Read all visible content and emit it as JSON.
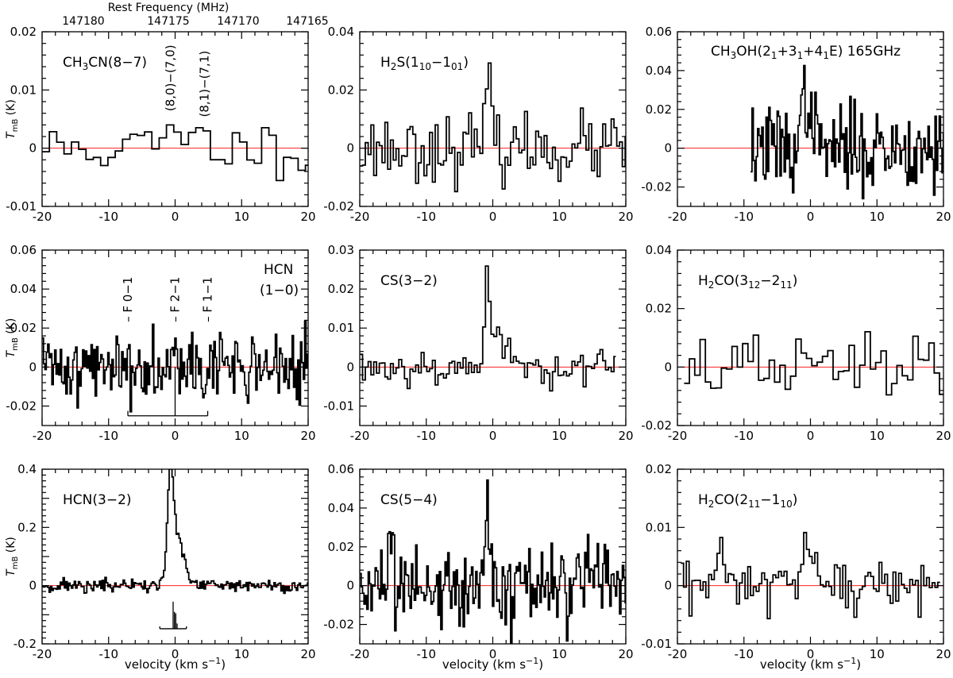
{
  "figure": {
    "x_axis_label": "velocity (km s⁻¹)",
    "y_axis_label": "T_mB (K)",
    "top_axis": {
      "label": "Rest Frequency (MHz)",
      "ticks": [
        "147180",
        "147175",
        "147170",
        "147165"
      ]
    }
  },
  "chart_data": [
    {
      "type": "line",
      "row": 0,
      "col": 0,
      "label": "CH3CN(8-7)",
      "label_html": "CH<tspan dy='4' font-size='12'>3</tspan><tspan dy='-4'>CN(8−7)</tspan>",
      "xlim": [
        -20,
        20
      ],
      "ylim": [
        -0.01,
        0.02
      ],
      "xticks": [
        -20,
        -10,
        0,
        10,
        20
      ],
      "yticks": [
        -0.01,
        0,
        0.01,
        0.02
      ],
      "ytick_labels": [
        "-0.01",
        "0",
        "0.01",
        "0.02"
      ],
      "annotations": [
        "(8,0)−(7,0)",
        "(8,1)−(7,1)"
      ],
      "noise": 0.0022,
      "step": 1.1,
      "seed": 11,
      "xrange": [
        -20,
        20
      ],
      "peaks": [
        {
          "v": -0.7,
          "amp": 0.0035,
          "width": 0.8
        },
        {
          "v": 4.2,
          "amp": 0.0025,
          "width": 0.8
        }
      ]
    },
    {
      "type": "line",
      "row": 0,
      "col": 1,
      "label": "H2S(110-101)",
      "label_html": "H<tspan dy='4' font-size='12'>2</tspan><tspan dy='-4'>S(1</tspan><tspan dy='4' font-size='12'>10</tspan><tspan dy='-4'>−1</tspan><tspan dy='4' font-size='12'>01</tspan><tspan dy='-4'>)</tspan>",
      "xlim": [
        -20,
        20
      ],
      "ylim": [
        -0.02,
        0.04
      ],
      "xticks": [
        -20,
        -10,
        0,
        10,
        20
      ],
      "yticks": [
        -0.02,
        0,
        0.02,
        0.04
      ],
      "ytick_labels": [
        "-0.02",
        "0",
        "0.02",
        "0.04"
      ],
      "noise": 0.0055,
      "step": 0.42,
      "seed": 23,
      "xrange": [
        -20,
        20
      ],
      "peaks": [
        {
          "v": -0.6,
          "amp": 0.017,
          "width": 0.6
        }
      ]
    },
    {
      "type": "line",
      "row": 0,
      "col": 2,
      "label": "CH3OH(21+31+41E) 165GHz",
      "label_html": "CH<tspan dy='4' font-size='12'>3</tspan><tspan dy='-4'>OH(2</tspan><tspan dy='4' font-size='12'>1</tspan><tspan dy='-4'>+3</tspan><tspan dy='4' font-size='12'>1</tspan><tspan dy='-4'>+4</tspan><tspan dy='4' font-size='12'>1</tspan><tspan dy='-4'>E)  165GHz</tspan>",
      "xlim": [
        -20,
        20
      ],
      "ylim": [
        -0.03,
        0.06
      ],
      "xticks": [
        -20,
        -10,
        0,
        10,
        20
      ],
      "yticks": [
        -0.02,
        0,
        0.02,
        0.04,
        0.06
      ],
      "ytick_labels": [
        "-0.02",
        "0",
        "0.02",
        "0.04",
        "0.06"
      ],
      "noise": 0.011,
      "step": 0.21,
      "seed": 37,
      "xrange": [
        -9,
        20
      ],
      "peaks": [
        {
          "v": -0.5,
          "amp": 0.028,
          "width": 0.7
        }
      ]
    },
    {
      "type": "line",
      "row": 1,
      "col": 0,
      "label": "HCN (1-0)",
      "label_html": "HCN",
      "label2": "(1−0)",
      "xlim": [
        -20,
        20
      ],
      "ylim": [
        -0.03,
        0.06
      ],
      "xticks": [
        -20,
        -10,
        0,
        10,
        20
      ],
      "yticks": [
        -0.02,
        0,
        0.02,
        0.04,
        0.06
      ],
      "ytick_labels": [
        "-0.02",
        "0",
        "0.02",
        "0.04",
        "0.06"
      ],
      "hyperfine": [
        {
          "v": -7.1,
          "label": "F 0−1"
        },
        {
          "v": 0,
          "label": "F 2−1"
        },
        {
          "v": 4.9,
          "label": "F 1−1"
        }
      ],
      "noise": 0.009,
      "step": 0.21,
      "seed": 41,
      "xrange": [
        -20,
        20
      ],
      "peaks": [
        {
          "v": -0.3,
          "amp": 0.012,
          "width": 1.0
        }
      ]
    },
    {
      "type": "line",
      "row": 1,
      "col": 1,
      "label": "CS(3-2)",
      "label_html": "CS(3−2)",
      "xlim": [
        -20,
        20
      ],
      "ylim": [
        -0.015,
        0.03
      ],
      "xticks": [
        -20,
        -10,
        0,
        10,
        20
      ],
      "yticks": [
        -0.01,
        0,
        0.01,
        0.02,
        0.03
      ],
      "ytick_labels": [
        "-0.01",
        "0",
        "0.01",
        "0.02",
        "0.03"
      ],
      "noise": 0.0023,
      "step": 0.42,
      "seed": 53,
      "xrange": [
        -20,
        18.5
      ],
      "peaks": [
        {
          "v": -0.9,
          "amp": 0.022,
          "width": 0.35
        },
        {
          "v": 0.6,
          "amp": 0.008,
          "width": 1.2
        }
      ]
    },
    {
      "type": "line",
      "row": 1,
      "col": 2,
      "label": "H2CO(312-211)",
      "label_html": "H<tspan dy='4' font-size='12'>2</tspan><tspan dy='-4'>CO(3</tspan><tspan dy='4' font-size='12'>12</tspan><tspan dy='-4'>−2</tspan><tspan dy='4' font-size='12'>11</tspan><tspan dy='-4'>)</tspan>",
      "xlim": [
        -20,
        20
      ],
      "ylim": [
        -0.02,
        0.04
      ],
      "xticks": [
        -20,
        -10,
        0,
        10,
        20
      ],
      "yticks": [
        -0.02,
        0,
        0.02,
        0.04
      ],
      "ytick_labels": [
        "-0.02",
        "0",
        "0.02",
        "0.04"
      ],
      "noise": 0.0055,
      "step": 0.8,
      "seed": 67,
      "xrange": [
        -19,
        20
      ],
      "peaks": []
    },
    {
      "type": "line",
      "row": 2,
      "col": 0,
      "label": "HCN(3-2)",
      "label_html": "HCN(3−2)",
      "xlim": [
        -20,
        20
      ],
      "ylim": [
        -0.2,
        0.4
      ],
      "xticks": [
        -20,
        -10,
        0,
        10,
        20
      ],
      "yticks": [
        -0.2,
        -0.1,
        0,
        0.1,
        0.2,
        0.3,
        0.4
      ],
      "ytick_labels": [
        "-0.2",
        "",
        "0",
        "",
        "0.2",
        "",
        "0.4"
      ],
      "noise": 0.012,
      "step": 0.21,
      "seed": 71,
      "xrange": [
        -20,
        20
      ],
      "peaks": [
        {
          "v": -0.7,
          "amp": 0.35,
          "width": 0.45
        },
        {
          "v": 0.4,
          "amp": 0.16,
          "width": 0.9
        }
      ],
      "hfs_bar": true
    },
    {
      "type": "line",
      "row": 2,
      "col": 1,
      "label": "CS(5-4)",
      "label_html": "CS(5−4)",
      "xlim": [
        -20,
        20
      ],
      "ylim": [
        -0.03,
        0.06
      ],
      "xticks": [
        -20,
        -10,
        0,
        10,
        20
      ],
      "yticks": [
        -0.02,
        0,
        0.02,
        0.04,
        0.06
      ],
      "ytick_labels": [
        "-0.02",
        "0",
        "0.02",
        "0.04",
        "0.06"
      ],
      "noise": 0.011,
      "step": 0.21,
      "seed": 83,
      "xrange": [
        -20,
        20
      ],
      "peaks": [
        {
          "v": -0.8,
          "amp": 0.045,
          "width": 0.35
        }
      ]
    },
    {
      "type": "line",
      "row": 2,
      "col": 2,
      "label": "H2CO(211-110)",
      "label_html": "H<tspan dy='4' font-size='12'>2</tspan><tspan dy='-4'>CO(2</tspan><tspan dy='4' font-size='12'>11</tspan><tspan dy='-4'>−1</tspan><tspan dy='4' font-size='12'>10</tspan><tspan dy='-4'>)</tspan>",
      "xlim": [
        -20,
        20
      ],
      "ylim": [
        -0.01,
        0.02
      ],
      "xticks": [
        -20,
        -10,
        0,
        10,
        20
      ],
      "yticks": [
        -0.01,
        0,
        0.01,
        0.02
      ],
      "ytick_labels": [
        "-0.01",
        "0",
        "0.01",
        "0.02"
      ],
      "noise": 0.0027,
      "step": 0.42,
      "seed": 97,
      "xrange": [
        -19.5,
        19.5
      ],
      "peaks": [
        {
          "v": -0.5,
          "amp": 0.006,
          "width": 0.6
        }
      ]
    }
  ]
}
